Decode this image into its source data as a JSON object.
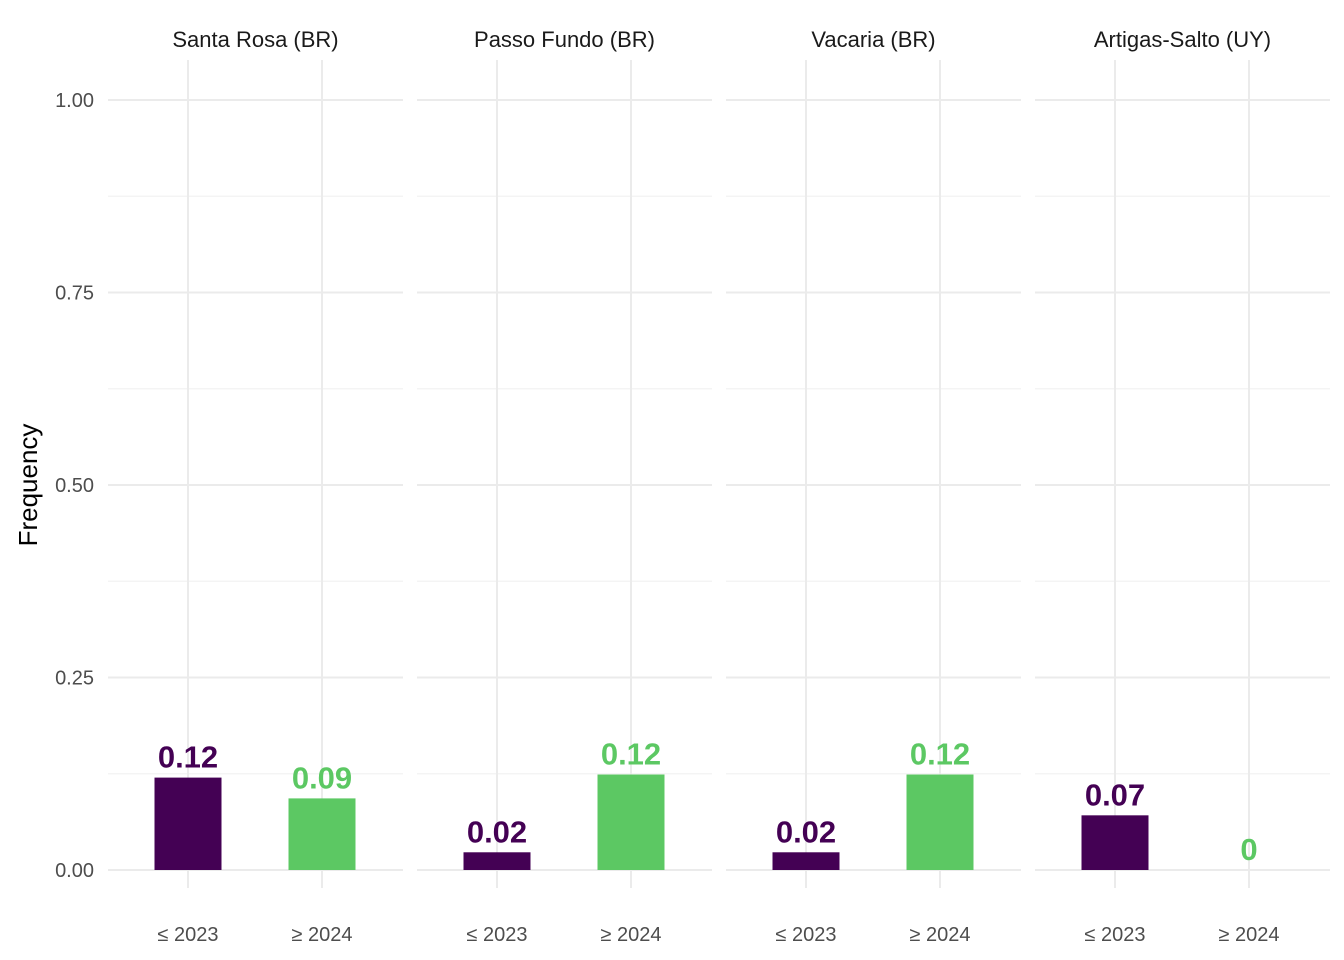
{
  "chart_data": {
    "type": "bar",
    "ylabel": "Frequency",
    "xlabel": "",
    "ylim": [
      0,
      1
    ],
    "y_ticks": [
      "0.00",
      "0.25",
      "0.50",
      "0.75",
      "1.00"
    ],
    "y_tick_values": [
      0,
      0.25,
      0.5,
      0.75,
      1.0
    ],
    "grid": true,
    "categories": [
      "≤ 2023",
      "≥ 2024"
    ],
    "colors": {
      "≤ 2023": "#440154",
      "≥ 2024": "#5cc863"
    },
    "facets": [
      {
        "name": "Santa Rosa (BR)",
        "values": [
          0.12,
          0.093
        ],
        "labels": [
          "0.12",
          "0.09"
        ]
      },
      {
        "name": "Passo Fundo (BR)",
        "values": [
          0.023,
          0.124
        ],
        "labels": [
          "0.02",
          "0.12"
        ]
      },
      {
        "name": "Vacaria (BR)",
        "values": [
          0.023,
          0.124
        ],
        "labels": [
          "0.02",
          "0.12"
        ]
      },
      {
        "name": "Artigas-Salto (UY)",
        "values": [
          0.071,
          0.0
        ],
        "labels": [
          "0.07",
          "0"
        ]
      }
    ]
  }
}
